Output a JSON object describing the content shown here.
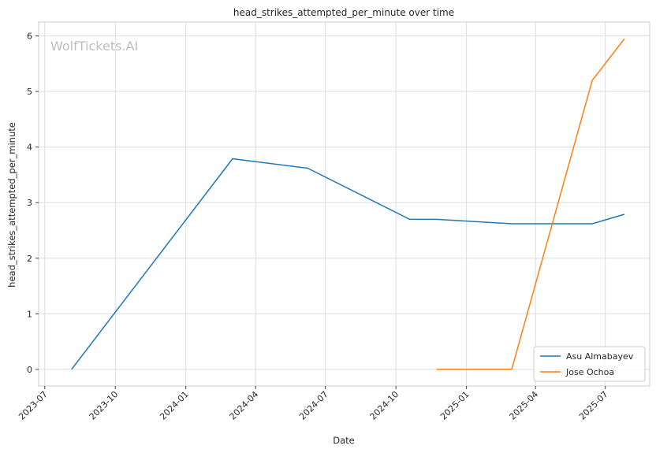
{
  "chart_data": {
    "type": "line",
    "title": "head_strikes_attempted_per_minute over time",
    "xlabel": "Date",
    "ylabel": "head_strikes_attempted_per_minute",
    "watermark": "WolfTickets.AI",
    "x_ticks": [
      "2023-07-01",
      "2023-10-01",
      "2024-01-01",
      "2024-04-01",
      "2024-07-01",
      "2024-10-01",
      "2025-01-01",
      "2025-04-01",
      "2025-07-01"
    ],
    "x_tick_labels": [
      "2023-07",
      "2023-10",
      "2024-01",
      "2024-04",
      "2024-07",
      "2024-10",
      "2025-01",
      "2025-04",
      "2025-07"
    ],
    "xlim": [
      "2023-06-23",
      "2025-08-28"
    ],
    "y_ticks": [
      0,
      1,
      2,
      3,
      4,
      5,
      6
    ],
    "ylim": [
      -0.3,
      6.25
    ],
    "grid": true,
    "legend_position": "lower-right",
    "series": [
      {
        "name": "Asu Almabayev",
        "color": "#1f77b4",
        "points": [
          {
            "x": "2023-08-05",
            "y": 0.0
          },
          {
            "x": "2024-03-02",
            "y": 3.79
          },
          {
            "x": "2024-06-08",
            "y": 3.62
          },
          {
            "x": "2024-10-19",
            "y": 2.7
          },
          {
            "x": "2024-11-23",
            "y": 2.7
          },
          {
            "x": "2025-03-01",
            "y": 2.62
          },
          {
            "x": "2025-06-14",
            "y": 2.62
          },
          {
            "x": "2025-07-26",
            "y": 2.79
          }
        ]
      },
      {
        "name": "Jose Ochoa",
        "color": "#ff7f0e",
        "points": [
          {
            "x": "2024-11-23",
            "y": 0.0
          },
          {
            "x": "2025-03-01",
            "y": 0.0
          },
          {
            "x": "2025-06-14",
            "y": 5.2
          },
          {
            "x": "2025-07-26",
            "y": 5.95
          }
        ]
      }
    ]
  }
}
